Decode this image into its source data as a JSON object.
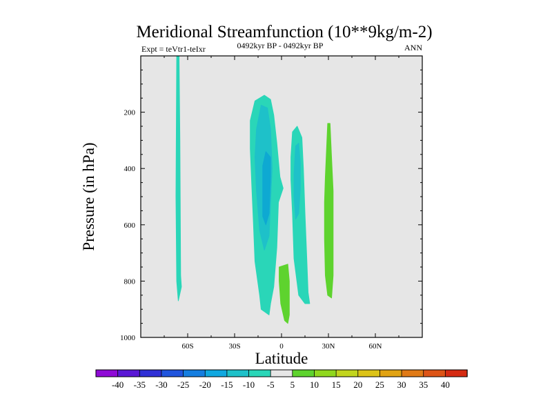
{
  "chart_data": {
    "type": "contour",
    "title": "Meridional Streamfunction (10**9kg/m-2)",
    "subtitle_left": "Expt = teVtr1-teIxr",
    "subtitle_center": "0492kyr BP - 0492kyr BP",
    "subtitle_right": "ANN",
    "xlabel": "Latitude",
    "ylabel": "Pressure (in hPa)",
    "xlim": [
      -90,
      90
    ],
    "ylim": [
      1000,
      0
    ],
    "x_ticks": [
      {
        "value": -60,
        "label": "60S"
      },
      {
        "value": -30,
        "label": "30S"
      },
      {
        "value": 0,
        "label": "0"
      },
      {
        "value": 30,
        "label": "30N"
      },
      {
        "value": 60,
        "label": "60N"
      }
    ],
    "y_ticks": [
      {
        "value": 200,
        "label": "200"
      },
      {
        "value": 400,
        "label": "400"
      },
      {
        "value": 600,
        "label": "600"
      },
      {
        "value": 800,
        "label": "800"
      },
      {
        "value": 1000,
        "label": "1000"
      }
    ],
    "background_color": "#e6e6e6",
    "contours": [
      {
        "name": "cell-65S",
        "level": -5,
        "color": "#2ad6b8",
        "points": [
          [
            -67.0,
            0
          ],
          [
            -65.5,
            0
          ],
          [
            -65.0,
            300
          ],
          [
            -64.5,
            780
          ],
          [
            -64.0,
            820
          ],
          [
            -66.0,
            870
          ],
          [
            -67.0,
            800
          ],
          [
            -67.5,
            500
          ]
        ]
      },
      {
        "name": "cell-10S-outer",
        "level": -5,
        "color": "#2ad6b8",
        "points": [
          [
            -20,
            230
          ],
          [
            -17,
            160
          ],
          [
            -11,
            140
          ],
          [
            -7,
            155
          ],
          [
            -5,
            210
          ],
          [
            -3,
            310
          ],
          [
            -1,
            430
          ],
          [
            1,
            470
          ],
          [
            -2,
            520
          ],
          [
            -3,
            680
          ],
          [
            -5,
            820
          ],
          [
            -7,
            880
          ],
          [
            -8,
            920
          ],
          [
            -13,
            900
          ],
          [
            -14,
            850
          ],
          [
            -17,
            730
          ],
          [
            -18,
            590
          ],
          [
            -19,
            460
          ],
          [
            -20,
            330
          ]
        ]
      },
      {
        "name": "cell-10S-mid",
        "level": -10,
        "color": "#1ec1c9",
        "points": [
          [
            -16,
            260
          ],
          [
            -13,
            175
          ],
          [
            -9,
            185
          ],
          [
            -7,
            260
          ],
          [
            -6,
            400
          ],
          [
            -7,
            520
          ],
          [
            -8,
            640
          ],
          [
            -11,
            690
          ],
          [
            -14,
            620
          ],
          [
            -16,
            480
          ],
          [
            -17,
            360
          ]
        ]
      },
      {
        "name": "cell-10S-core",
        "level": -15,
        "color": "#0ea9d2",
        "points": [
          [
            -12,
            390
          ],
          [
            -10,
            340
          ],
          [
            -7,
            360
          ],
          [
            -7,
            430
          ],
          [
            -8,
            560
          ],
          [
            -10,
            600
          ],
          [
            -12,
            570
          ],
          [
            -12,
            480
          ]
        ]
      },
      {
        "name": "cell-10N-outer",
        "level": -5,
        "color": "#2ad6b8",
        "points": [
          [
            6,
            360
          ],
          [
            7,
            270
          ],
          [
            10,
            250
          ],
          [
            13,
            290
          ],
          [
            14,
            400
          ],
          [
            15,
            560
          ],
          [
            16,
            700
          ],
          [
            17,
            840
          ],
          [
            18,
            880
          ],
          [
            15,
            880
          ],
          [
            11,
            850
          ],
          [
            8,
            720
          ],
          [
            7,
            560
          ],
          [
            6,
            440
          ]
        ]
      },
      {
        "name": "cell-10N-core",
        "level": -10,
        "color": "#1ec1c9",
        "points": [
          [
            8,
            420
          ],
          [
            9,
            320
          ],
          [
            11,
            310
          ],
          [
            12,
            380
          ],
          [
            12,
            470
          ],
          [
            11,
            560
          ],
          [
            9,
            580
          ],
          [
            8,
            500
          ]
        ]
      },
      {
        "name": "cell-2N",
        "level": 5,
        "color": "#5ed32e",
        "points": [
          [
            -1.5,
            750
          ],
          [
            4,
            740
          ],
          [
            5,
            800
          ],
          [
            5,
            920
          ],
          [
            4,
            950
          ],
          [
            2,
            940
          ],
          [
            -0.5,
            880
          ],
          [
            -1.5,
            800
          ]
        ]
      },
      {
        "name": "cell-30N",
        "level": 5,
        "color": "#5ed32e",
        "points": [
          [
            28,
            430
          ],
          [
            29.5,
            240
          ],
          [
            31,
            240
          ],
          [
            32,
            360
          ],
          [
            33,
            480
          ],
          [
            33,
            780
          ],
          [
            32,
            860
          ],
          [
            29.5,
            850
          ],
          [
            28,
            780
          ],
          [
            27.5,
            650
          ],
          [
            27.5,
            520
          ]
        ]
      }
    ],
    "colorbar": {
      "levels": [
        -40,
        -35,
        -30,
        -25,
        -20,
        -15,
        -10,
        -5,
        5,
        10,
        15,
        20,
        25,
        30,
        35,
        40
      ],
      "colors": [
        "#8f0ad6",
        "#5a17d5",
        "#3030d6",
        "#2055dd",
        "#157ee0",
        "#10a8e0",
        "#1ec1c9",
        "#2ad6b8",
        "#e6e6e6",
        "#5ed32e",
        "#90d81e",
        "#c2d51e",
        "#dcc317",
        "#e1a313",
        "#e07a16",
        "#dd5416",
        "#d52b12"
      ]
    }
  }
}
